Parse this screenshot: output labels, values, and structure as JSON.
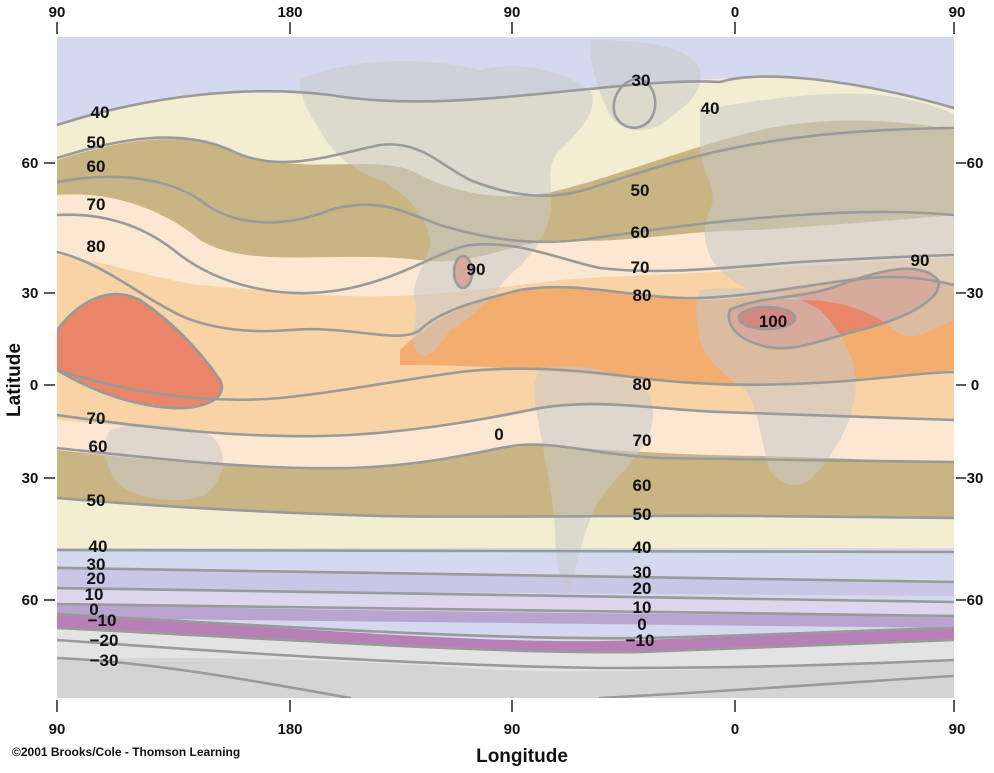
{
  "map": {
    "xlabel": "Longitude",
    "ylabel": "Latitude",
    "credit": "©2001 Brooks/Cole - Thomson Learning",
    "top_ticks": [
      "90",
      "180",
      "90",
      "0",
      "90"
    ],
    "bottom_ticks": [
      "90",
      "180",
      "90",
      "0",
      "90"
    ],
    "left_ticks": [
      "60",
      "30",
      "0",
      "30",
      "60"
    ],
    "right_ticks": [
      "60",
      "30",
      "0",
      "30",
      "60"
    ],
    "isotherm_labels": [
      "40",
      "50",
      "60",
      "70",
      "80",
      "70",
      "60",
      "50",
      "40",
      "30",
      "20",
      "10",
      "0",
      "−10",
      "−20",
      "−30",
      "30",
      "40",
      "50",
      "60",
      "70",
      "80",
      "80",
      "70",
      "60",
      "50",
      "40",
      "30",
      "20",
      "10",
      "0",
      "−10",
      "90",
      "100",
      "90",
      "0"
    ],
    "colors": {
      "ocean_cold": "#d4d9ef",
      "band_40_50": "#f3edd2",
      "band_50_60": "#c9b583",
      "band_60_70": "#fbe7d2",
      "band_70_80": "#f8d3a6",
      "band_80_90": "#f3ae6f",
      "band_90": "#e9866a",
      "band_100": "#d93a2a",
      "band_20_30": "#c9c6e6",
      "band_10_20": "#ddd6ec",
      "band_0_10": "#b9a4cf",
      "band_below_0": "#b77fb6",
      "polar": "#e3e3e3",
      "isotherm": "#9a9a9a"
    }
  }
}
